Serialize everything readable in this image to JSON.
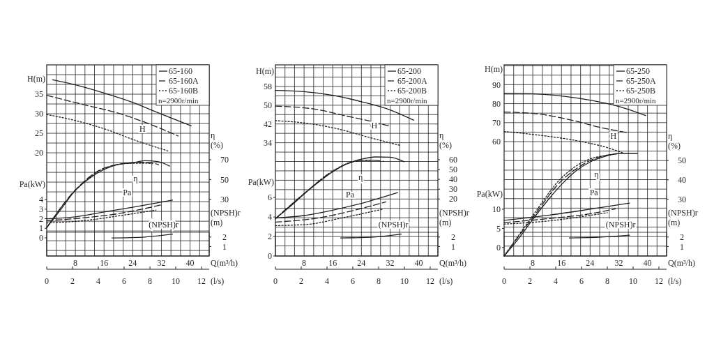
{
  "chart_data": [
    {
      "type": "line",
      "xlabel": "Q(m³/h)",
      "x2label": "(l/s)",
      "ylabel": "H(m)",
      "y2label": "η\n(%)",
      "y3label": "Pa(kW)",
      "legend_title": "n=2900r/min",
      "legend": "top right",
      "grid": true,
      "xlim": [
        0,
        45.333
      ],
      "xticks": [
        {
          "value": 2.667,
          "label": null
        },
        {
          "value": 5.333,
          "label": null
        },
        8,
        {
          "value": 10.667,
          "label": null
        },
        {
          "value": 13.333,
          "label": null
        },
        16,
        {
          "value": 18.667,
          "label": null
        },
        {
          "value": 21.333,
          "label": null
        },
        24,
        {
          "value": 26.667,
          "label": null
        },
        {
          "value": 29.333,
          "label": null
        },
        32,
        {
          "value": 34.667,
          "label": null
        },
        {
          "value": 37.333,
          "label": null
        },
        40,
        {
          "value": 42.667,
          "label": null
        }
      ],
      "x2lim": [
        0,
        12.593
      ],
      "x2ticks": [
        0,
        2,
        4,
        6,
        8,
        10,
        12
      ],
      "ylim": [
        -6.4,
        42.5
      ],
      "yticks": [
        {
          "value": -5,
          "label": null
        },
        {
          "value": -2.5,
          "label": null
        },
        {
          "value": 0,
          "label": null
        },
        {
          "value": 2.5,
          "label": null
        },
        {
          "value": 5,
          "label": null
        },
        {
          "value": 7.5,
          "label": null
        },
        {
          "value": 10,
          "label": null
        },
        {
          "value": 12.5,
          "label": null
        },
        {
          "value": 15,
          "label": null
        },
        {
          "value": 17.5,
          "label": null
        },
        20,
        {
          "value": 22.5,
          "label": null
        },
        25,
        {
          "value": 27.5,
          "label": null
        },
        30,
        {
          "value": 32.5,
          "label": null
        },
        35,
        {
          "value": 37.5,
          "label": null
        },
        {
          "value": 40,
          "label": null
        }
      ],
      "y2lim": [
        -27.4,
        166
      ],
      "y2ticks": [
        30,
        50,
        70
      ],
      "y3lim": [
        -1.9,
        18.1
      ],
      "y3ticks": [
        0,
        1,
        2,
        3,
        4
      ],
      "annotations": [
        "H",
        "η",
        "Pa"
      ],
      "series": [
        {
          "name": "65-160",
          "color": "#231f20",
          "line_style": "solid",
          "x": [
            1.6,
            8,
            16,
            24,
            32,
            40.3
          ],
          "values": [
            38.7,
            37.4,
            35.3,
            32.9,
            29.9,
            26.9
          ]
        },
        {
          "name": "65-160A",
          "color": "#231f20",
          "line_style": "dashed",
          "x": [
            0,
            10.4,
            20.1,
            28.6,
            36.7
          ],
          "values": [
            34.7,
            32.3,
            30.1,
            27.4,
            24.3
          ]
        },
        {
          "name": "65-160B",
          "color": "#231f20",
          "line_style": "dotted",
          "x": [
            0,
            7.8,
            16.2,
            24.7,
            33.8
          ],
          "values": [
            29.8,
            28.3,
            26.1,
            23.2,
            20.5
          ]
        },
        {
          "color": "#231f20",
          "line_style": "solid",
          "axis": "y2",
          "x": [
            0,
            4,
            8,
            12,
            16,
            20,
            24,
            27.3,
            31,
            34.3
          ],
          "values": [
            1.3,
            20,
            39,
            51.4,
            60.1,
            65.3,
            67,
            69,
            68.2,
            63.6
          ]
        },
        {
          "color": "#231f20",
          "line_style": "dashed",
          "axis": "y2",
          "x": [
            0,
            8,
            16,
            24,
            28,
            31.2
          ],
          "values": [
            1.3,
            39.5,
            61.5,
            67,
            67.5,
            65
          ]
        },
        {
          "color": "#231f20",
          "line_style": "dotted",
          "axis": "y2",
          "x": [
            0,
            8,
            16,
            23,
            27.5,
            29.5
          ],
          "values": [
            1.3,
            39,
            61,
            66.3,
            66.5,
            66
          ]
        },
        {
          "color": "#231f20",
          "line_style": "solid",
          "axis": "y3",
          "x": [
            0,
            8,
            16,
            24,
            35.1
          ],
          "values": [
            2.0,
            2.2,
            2.7,
            3.2,
            3.95
          ]
        },
        {
          "color": "#231f20",
          "line_style": "dashed",
          "axis": "y3",
          "x": [
            0,
            10.4,
            20.1,
            32.5
          ],
          "values": [
            1.8,
            2.1,
            2.54,
            3.5
          ]
        },
        {
          "color": "#231f20",
          "line_style": "dotted",
          "axis": "y3",
          "x": [
            0,
            10.4,
            20.1,
            30.5
          ],
          "values": [
            1.56,
            1.8,
            2.3,
            2.9
          ]
        }
      ]
    },
    {
      "type": "line",
      "xlabel": "Q(m³/h)",
      "x2label": "(l/s)",
      "ylabel": "H(m)",
      "y2label": "η\n(%)",
      "y3label": "Pa(kW)",
      "legend_title": "n=2900r/min",
      "legend": "top right",
      "grid": true,
      "xlim": [
        0,
        45.333
      ],
      "xticks": [
        {
          "value": 2.667,
          "label": null
        },
        {
          "value": 5.333,
          "label": null
        },
        8,
        {
          "value": 10.667,
          "label": null
        },
        {
          "value": 13.333,
          "label": null
        },
        16,
        {
          "value": 18.667,
          "label": null
        },
        {
          "value": 21.333,
          "label": null
        },
        24,
        {
          "value": 26.667,
          "label": null
        },
        {
          "value": 29.333,
          "label": null
        },
        32,
        {
          "value": 34.667,
          "label": null
        },
        {
          "value": 37.333,
          "label": null
        },
        40,
        {
          "value": 42.667,
          "label": null
        }
      ],
      "x2lim": [
        0,
        12.593
      ],
      "x2ticks": [
        0,
        2,
        4,
        6,
        8,
        10,
        12
      ],
      "ylim": [
        -14.3,
        67.2
      ],
      "yticks": [
        {
          "value": -10,
          "label": null
        },
        {
          "value": -6,
          "label": null
        },
        {
          "value": -2,
          "label": null
        },
        {
          "value": 2,
          "label": null
        },
        {
          "value": 6,
          "label": null
        },
        {
          "value": 10,
          "label": null
        },
        {
          "value": 14,
          "label": null
        },
        {
          "value": 18,
          "label": null
        },
        {
          "value": 22,
          "label": null
        },
        {
          "value": 26,
          "label": null
        },
        {
          "value": 30,
          "label": null
        },
        34,
        {
          "value": 38,
          "label": null
        },
        42,
        {
          "value": 46,
          "label": null
        },
        50,
        {
          "value": 54,
          "label": null
        },
        58,
        {
          "value": 62,
          "label": null
        },
        {
          "value": 66,
          "label": null
        }
      ],
      "y2lim": [
        -38,
        156.5
      ],
      "y2ticks": [
        20,
        30,
        40,
        50,
        60
      ],
      "y3lim": [
        0,
        19.6
      ],
      "y3ticks": [
        0,
        2,
        4,
        6
      ],
      "annotations": [
        "H",
        "η",
        "Pa"
      ],
      "series": [
        {
          "name": "65-200",
          "color": "#231f20",
          "line_style": "solid",
          "x": [
            0,
            8,
            16,
            24,
            32,
            38.6
          ],
          "values": [
            56.3,
            55.8,
            54.2,
            51.5,
            48,
            43.6
          ]
        },
        {
          "name": "65-200A",
          "color": "#231f20",
          "line_style": "dashed",
          "x": [
            0,
            10.7,
            19.8,
            27,
            32.1
          ],
          "values": [
            49.6,
            48.4,
            45.4,
            43,
            41
          ]
        },
        {
          "name": "65-200B",
          "color": "#231f20",
          "line_style": "dotted",
          "x": [
            0,
            8.8,
            18.5,
            25.6,
            34.7
          ],
          "values": [
            43.4,
            42.3,
            39.5,
            36.5,
            32.9
          ]
        },
        {
          "color": "#231f20",
          "line_style": "solid",
          "axis": "y2",
          "x": [
            0,
            4,
            8,
            12,
            16,
            20,
            24,
            28,
            32,
            35.9
          ],
          "values": [
            0,
            12,
            25,
            37,
            47.7,
            56,
            60.5,
            62.8,
            62.5,
            57.9
          ]
        },
        {
          "color": "#231f20",
          "line_style": "dashed",
          "axis": "y2",
          "x": [
            0,
            8,
            16,
            22,
            26,
            30.2
          ],
          "values": [
            0,
            25.5,
            48.2,
            58,
            59.5,
            58.3
          ]
        },
        {
          "color": "#231f20",
          "line_style": "dotted",
          "axis": "y2",
          "x": [
            0,
            8,
            16,
            22,
            27.3
          ],
          "values": [
            0,
            25.5,
            48.5,
            58.2,
            59.5
          ]
        },
        {
          "color": "#231f20",
          "line_style": "solid",
          "axis": "y3",
          "x": [
            0,
            8,
            16,
            24,
            34.1
          ],
          "values": [
            3.9,
            4.15,
            4.7,
            5.4,
            6.5
          ]
        },
        {
          "color": "#231f20",
          "line_style": "dashed",
          "axis": "y3",
          "x": [
            0,
            12,
            21.8,
            30.8
          ],
          "values": [
            3.48,
            3.9,
            4.67,
            5.55
          ]
        },
        {
          "color": "#231f20",
          "line_style": "dotted",
          "axis": "y3",
          "x": [
            0,
            8.8,
            18.5,
            29.9
          ],
          "values": [
            3.12,
            3.24,
            3.9,
            4.8
          ]
        }
      ]
    },
    {
      "type": "line",
      "xlabel": "Q(m³/h)",
      "x2label": "(l/s)",
      "ylabel": "H(m)",
      "y2label": "η\n(%)",
      "y3label": "Pa(kW)",
      "legend_title": "n=2900r/min",
      "legend": "top right",
      "grid": true,
      "xlim": [
        0,
        45.333
      ],
      "xticks": [
        {
          "value": 2.667,
          "label": null
        },
        {
          "value": 5.333,
          "label": null
        },
        8,
        {
          "value": 10.667,
          "label": null
        },
        {
          "value": 13.333,
          "label": null
        },
        16,
        {
          "value": 18.667,
          "label": null
        },
        {
          "value": 21.333,
          "label": null
        },
        24,
        {
          "value": 26.667,
          "label": null
        },
        {
          "value": 29.333,
          "label": null
        },
        32,
        {
          "value": 34.667,
          "label": null
        },
        {
          "value": 37.333,
          "label": null
        },
        40,
        {
          "value": 42.667,
          "label": null
        }
      ],
      "x2lim": [
        0,
        12.593
      ],
      "x2ticks": [
        0,
        2,
        4,
        6,
        8,
        10,
        12
      ],
      "ylim": [
        -0.2,
        100.4
      ],
      "yticks": [
        {
          "value": 5,
          "label": null
        },
        {
          "value": 10,
          "label": null
        },
        {
          "value": 15,
          "label": null
        },
        {
          "value": 20,
          "label": null
        },
        {
          "value": 25,
          "label": null
        },
        {
          "value": 30,
          "label": null
        },
        {
          "value": 35,
          "label": null
        },
        {
          "value": 40,
          "label": null
        },
        {
          "value": 45,
          "label": null
        },
        {
          "value": 50,
          "label": null
        },
        {
          "value": 55,
          "label": null
        },
        60,
        {
          "value": 65,
          "label": null
        },
        70,
        {
          "value": 75,
          "label": null
        },
        80,
        {
          "value": 85,
          "label": null
        },
        90,
        {
          "value": 95,
          "label": null
        },
        {
          "value": 100,
          "label": null
        }
      ],
      "y2lim": [
        0.6,
        99.4
      ],
      "y2ticks": [
        30,
        40,
        50
      ],
      "y3lim": [
        -2.2,
        47.6
      ],
      "y3ticks": [
        0,
        5,
        10
      ],
      "annotations": [
        "H",
        "η",
        "Pa"
      ],
      "series": [
        {
          "name": "65-250",
          "color": "#231f20",
          "line_style": "solid",
          "x": [
            0,
            8,
            16,
            24,
            32,
            39.5
          ],
          "values": [
            85.5,
            85.2,
            84,
            81.8,
            78.5,
            73.7
          ]
        },
        {
          "name": "65-250A",
          "color": "#231f20",
          "line_style": "dashed",
          "x": [
            0,
            9.8,
            19.5,
            27.9,
            34.6
          ],
          "values": [
            75.6,
            74.5,
            71,
            67,
            64.7
          ]
        },
        {
          "name": "65-250B",
          "color": "#231f20",
          "line_style": "dotted",
          "x": [
            0,
            9.8,
            20.8,
            28.5,
            33.4
          ],
          "values": [
            65.3,
            63.4,
            60.3,
            57,
            53.9
          ]
        },
        {
          "color": "#231f20",
          "line_style": "solid",
          "axis": "y2",
          "x": [
            0,
            4,
            8,
            12,
            16,
            20,
            24,
            28,
            32,
            37.2
          ],
          "values": [
            0.6,
            9.5,
            19.5,
            29,
            37.5,
            44.5,
            49.2,
            52,
            53.6,
            53.6
          ]
        },
        {
          "color": "#231f20",
          "line_style": "dashed",
          "axis": "y2",
          "x": [
            0,
            8,
            16,
            20,
            24,
            28,
            31.5
          ],
          "values": [
            0.6,
            20.5,
            39.5,
            45.5,
            50,
            52.5,
            53.4
          ]
        },
        {
          "color": "#231f20",
          "line_style": "dotted",
          "axis": "y2",
          "x": [
            0,
            8,
            16,
            20,
            24,
            28,
            30
          ],
          "values": [
            0.6,
            21.5,
            41,
            47,
            50.8,
            52.5,
            53
          ]
        },
        {
          "color": "#231f20",
          "line_style": "solid",
          "axis": "y3",
          "x": [
            0,
            13,
            24,
            35
          ],
          "values": [
            7.1,
            8.5,
            10,
            11.6
          ]
        },
        {
          "color": "#231f20",
          "line_style": "dashed",
          "axis": "y3",
          "x": [
            0,
            13,
            24.6,
            31.1
          ],
          "values": [
            6.5,
            7.6,
            8.9,
            10.1
          ]
        },
        {
          "color": "#231f20",
          "line_style": "dotted",
          "axis": "y3",
          "x": [
            0,
            13,
            22.7,
            28.8
          ],
          "values": [
            6.1,
            7,
            8.2,
            9.1
          ]
        }
      ]
    },
    {
      "type": "line",
      "ylabel": "(NPSH)r\n(m)",
      "tick_labels": "y",
      "xlim": [
        0,
        45.333
      ],
      "ylim": [
        0,
        2.5
      ],
      "yticks": [
        1,
        2
      ],
      "annotations": [
        "(NPSH)r"
      ],
      "series": [
        {
          "color": "#231f20",
          "line_style": "solid",
          "x": [
            18.2,
            27.3,
            35.1
          ],
          "values": [
            1.9,
            2.0,
            2.3
          ]
        }
      ]
    },
    {
      "type": "line",
      "ylabel": "(NPSH)r\n(m)",
      "tick_labels": "y",
      "xlim": [
        0,
        45.333
      ],
      "ylim": [
        0,
        2.5
      ],
      "yticks": [
        1,
        2
      ],
      "annotations": [
        "(NPSH)r"
      ],
      "series": [
        {
          "color": "#231f20",
          "line_style": "solid",
          "x": [
            18.2,
            27.6,
            35.1
          ],
          "values": [
            1.9,
            2.0,
            2.3
          ]
        }
      ]
    },
    {
      "type": "line",
      "ylabel": "(NPSH)r\n(m)",
      "tick_labels": "y",
      "xlim": [
        0,
        45.333
      ],
      "ylim": [
        0,
        2.5
      ],
      "yticks": [
        1,
        2
      ],
      "annotations": [
        "(NPSH)r"
      ],
      "series": [
        {
          "color": "#231f20",
          "line_style": "solid",
          "x": [
            18.2,
            27.2,
            35
          ],
          "values": [
            1.9,
            2.0,
            2.2
          ]
        }
      ]
    }
  ]
}
